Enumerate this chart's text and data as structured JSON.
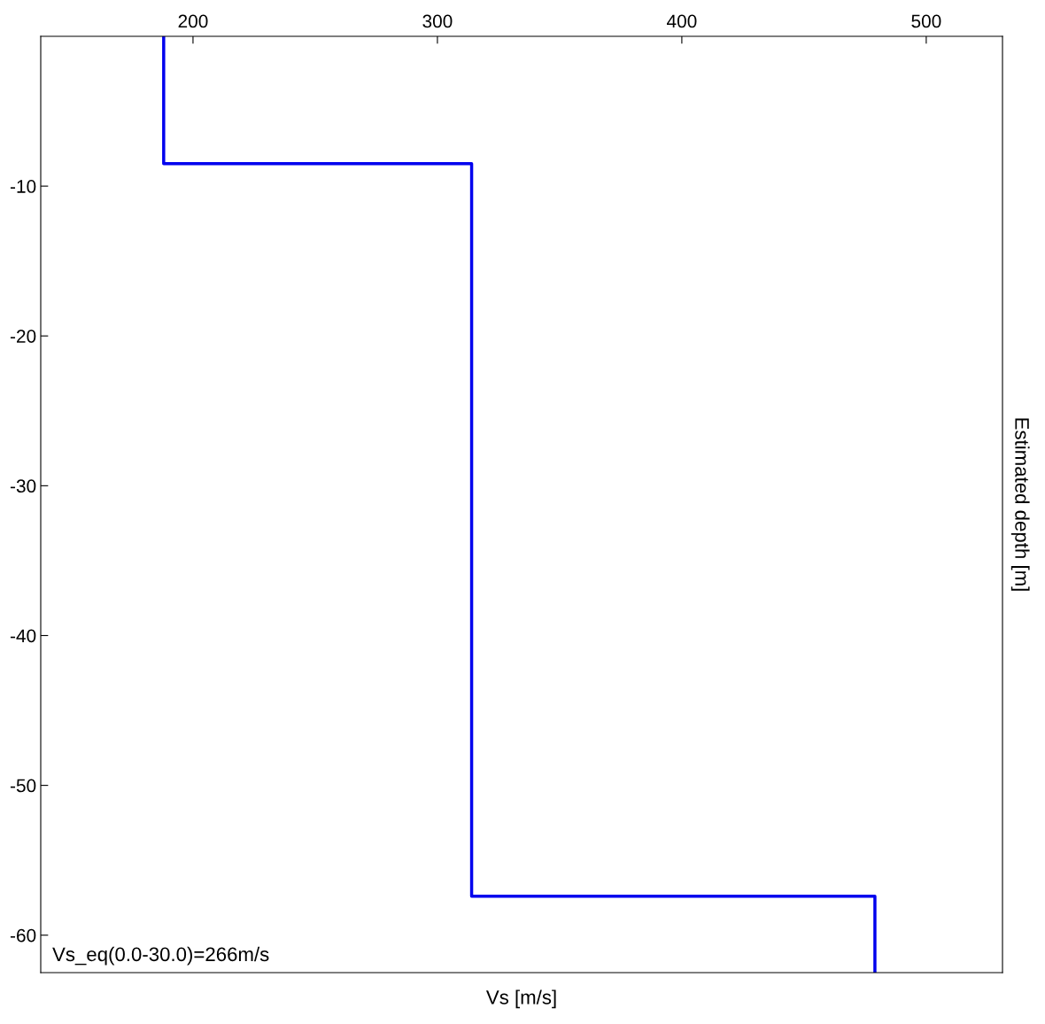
{
  "chart_data": {
    "type": "line",
    "xlabel": "Vs [m/s]",
    "ylabel": "Estimated depth [m]",
    "series": [
      {
        "color": "#0000ee",
        "x": [
          188,
          188,
          314,
          314,
          479,
          479
        ],
        "values": [
          0,
          -8.5,
          -8.5,
          -57.4,
          -57.4,
          -62.5
        ]
      }
    ],
    "xlim": [
      137.7,
      531.2
    ],
    "xticks": [
      200,
      300,
      400,
      500
    ],
    "ylim": [
      -62.5,
      0
    ],
    "yticks": [
      -10,
      -20,
      -30,
      -40,
      -50,
      -60
    ],
    "annotations": [
      "Vs_eq(0.0-30.0)=266m/s"
    ],
    "grid": false,
    "line_style": "solid",
    "marker": "none"
  }
}
